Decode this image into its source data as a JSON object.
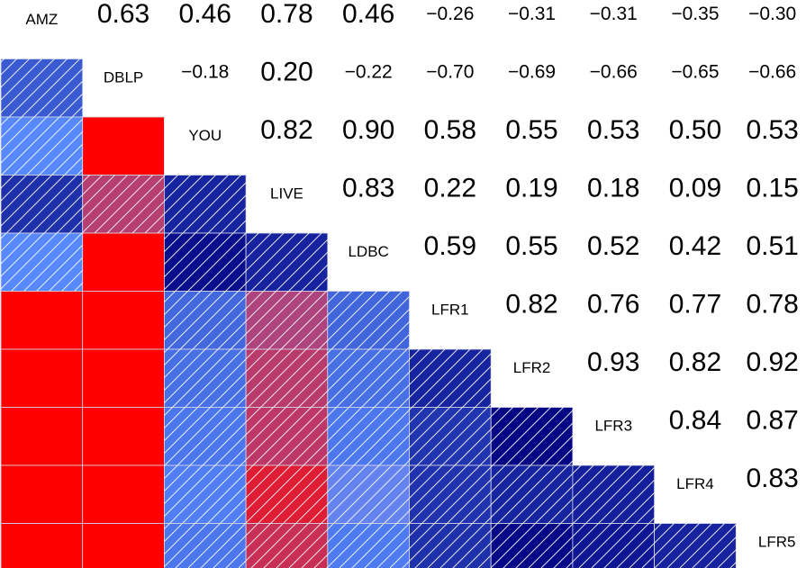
{
  "chart_data": {
    "type": "heatmap",
    "labels": [
      "AMZ",
      "DBLP",
      "YOU",
      "LIVE",
      "LDBC",
      "LFR1",
      "LFR2",
      "LFR3",
      "LFR4",
      "LFR5"
    ],
    "matrix": [
      [
        null,
        0.63,
        0.46,
        0.78,
        0.46,
        -0.26,
        -0.31,
        -0.31,
        -0.35,
        -0.3
      ],
      [
        0.63,
        null,
        -0.18,
        0.2,
        -0.22,
        -0.7,
        -0.69,
        -0.66,
        -0.65,
        -0.66
      ],
      [
        0.46,
        -0.18,
        null,
        0.82,
        0.9,
        0.58,
        0.55,
        0.53,
        0.5,
        0.53
      ],
      [
        0.78,
        0.2,
        0.82,
        null,
        0.83,
        0.22,
        0.19,
        0.18,
        0.09,
        0.15
      ],
      [
        0.46,
        -0.22,
        0.9,
        0.83,
        null,
        0.59,
        0.55,
        0.52,
        0.42,
        0.51
      ],
      [
        -0.26,
        -0.7,
        0.58,
        0.22,
        0.59,
        null,
        0.82,
        0.76,
        0.77,
        0.78
      ],
      [
        -0.31,
        -0.69,
        0.55,
        0.19,
        0.55,
        0.82,
        null,
        0.93,
        0.82,
        0.92
      ],
      [
        -0.31,
        -0.66,
        0.53,
        0.18,
        0.52,
        0.76,
        0.93,
        null,
        0.84,
        0.87
      ],
      [
        -0.35,
        -0.65,
        0.5,
        0.09,
        0.42,
        0.77,
        0.82,
        0.84,
        null,
        0.83
      ],
      [
        -0.3,
        -0.66,
        0.53,
        0.15,
        0.51,
        0.78,
        0.92,
        0.87,
        0.83,
        null
      ]
    ],
    "upper_triangle": "numeric values",
    "lower_triangle": "colored tiles with hatching",
    "colors": {
      "positive": "#00007f",
      "negative": "#ff0000",
      "mid": "#5a8cff"
    }
  }
}
